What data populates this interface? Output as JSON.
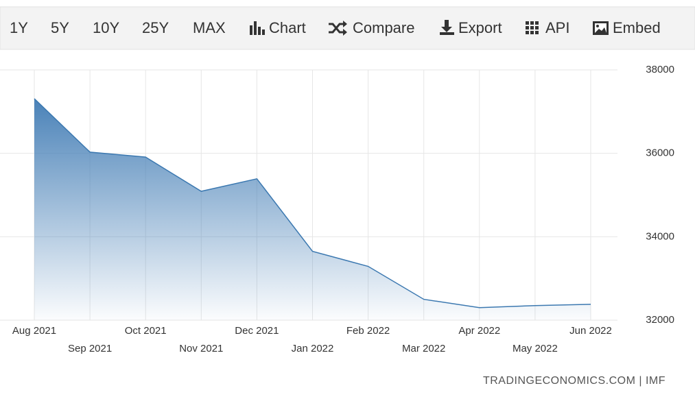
{
  "toolbar": {
    "buttons": [
      "1Y",
      "5Y",
      "10Y",
      "25Y",
      "MAX",
      "Chart",
      "Compare",
      "Export",
      "API",
      "Embed"
    ]
  },
  "chart_data": {
    "type": "area",
    "categories": [
      "Aug 2021",
      "Sep 2021",
      "Oct 2021",
      "Nov 2021",
      "Dec 2021",
      "Jan 2022",
      "Feb 2022",
      "Mar 2022",
      "Apr 2022",
      "May 2022",
      "Jun 2022"
    ],
    "values": [
      37310,
      36030,
      35910,
      35090,
      35390,
      33650,
      33290,
      32500,
      32300,
      32350,
      32380
    ],
    "color": "#3b78b0",
    "ylim": [
      32000,
      38000
    ],
    "yticks": [
      32000,
      34000,
      36000,
      38000
    ],
    "grid": true,
    "source": "TRADINGECONOMICS.COM | IMF"
  }
}
